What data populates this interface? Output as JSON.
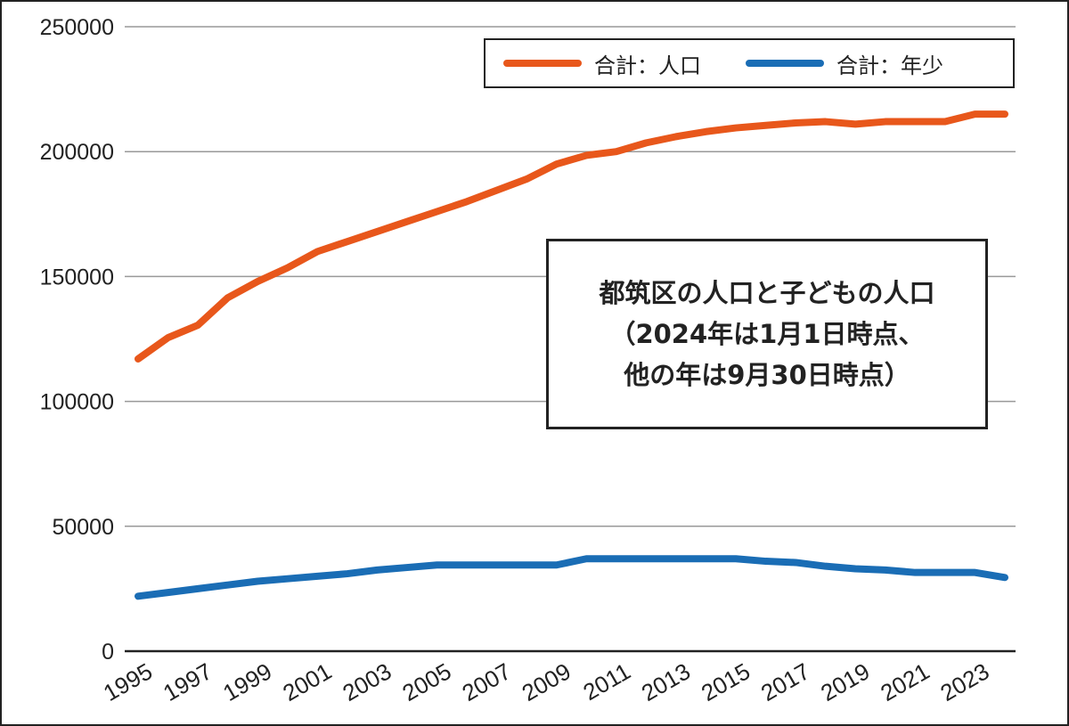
{
  "chart_data": {
    "type": "line",
    "title": [
      "都筑区の人口と子どもの人口",
      "（2024年は1月1日時点、",
      "他の年は9月30日時点）"
    ],
    "x": [
      1995,
      1996,
      1997,
      1998,
      1999,
      2000,
      2001,
      2002,
      2003,
      2004,
      2005,
      2006,
      2007,
      2008,
      2009,
      2010,
      2011,
      2012,
      2013,
      2014,
      2015,
      2016,
      2017,
      2018,
      2019,
      2020,
      2021,
      2022,
      2023,
      2024
    ],
    "x_tick_labels": [
      "1995",
      "1997",
      "1999",
      "2001",
      "2003",
      "2005",
      "2007",
      "2009",
      "2011",
      "2013",
      "2015",
      "2017",
      "2019",
      "2021",
      "2023"
    ],
    "y_tick_labels": [
      "0",
      "50000",
      "100000",
      "150000",
      "200000",
      "250000"
    ],
    "ylim": [
      0,
      250000
    ],
    "grid": true,
    "legend_position": "top-right",
    "series": [
      {
        "name": "合計：人口",
        "color": "#e8571b",
        "values": [
          117000,
          125500,
          130500,
          141500,
          148000,
          153500,
          160000,
          164000,
          168000,
          172000,
          176000,
          180000,
          184500,
          189000,
          195000,
          198500,
          200000,
          203500,
          206000,
          208000,
          209500,
          210500,
          211500,
          212000,
          211000,
          212000,
          212000,
          212000,
          215000,
          215000
        ]
      },
      {
        "name": "合計：年少",
        "color": "#1a6db5",
        "values": [
          22000,
          23500,
          25000,
          26500,
          28000,
          29000,
          30000,
          31000,
          32500,
          33500,
          34500,
          34500,
          34500,
          34500,
          34500,
          37000,
          37000,
          37000,
          37000,
          37000,
          37000,
          36000,
          35500,
          34000,
          33000,
          32500,
          31500,
          31500,
          31500,
          29500
        ]
      }
    ]
  }
}
